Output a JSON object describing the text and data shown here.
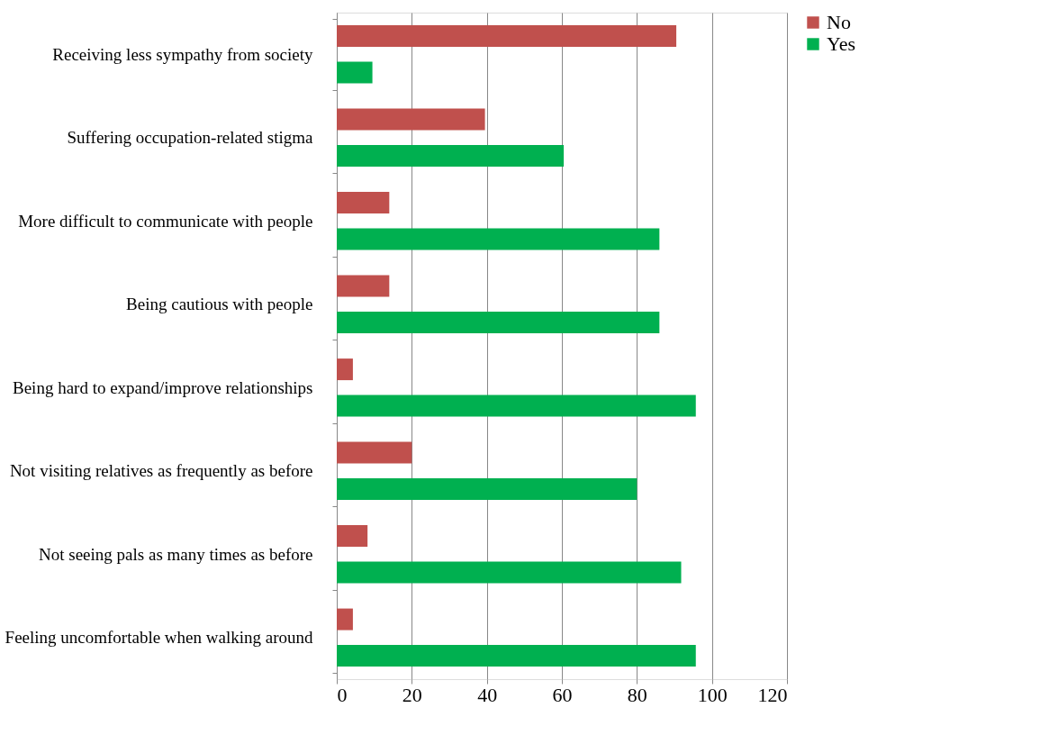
{
  "chart_data": {
    "type": "bar",
    "orientation": "horizontal",
    "categories": [
      "Receiving less sympathy from society",
      "Suffering occupation-related stigma",
      "More difficult to communicate  with people",
      "Being cautious with people",
      "Being hard to expand/improve relationships",
      "Not visiting relatives as frequently as before",
      "Not seeing pals as many times as before",
      "Feeling uncomfortable when walking around"
    ],
    "series": [
      {
        "name": "No",
        "color": "#c0504d",
        "values": [
          90.5,
          39.5,
          14,
          14,
          4.3,
          20,
          8.2,
          4.3
        ]
      },
      {
        "name": "Yes",
        "color": "#00b050",
        "values": [
          9.5,
          60.5,
          86,
          86,
          95.7,
          80,
          91.8,
          95.7
        ]
      }
    ],
    "xlim": [
      0,
      120
    ],
    "xticks": [
      0,
      20,
      40,
      60,
      80,
      100,
      120
    ],
    "grid": "x",
    "legend": "right"
  }
}
